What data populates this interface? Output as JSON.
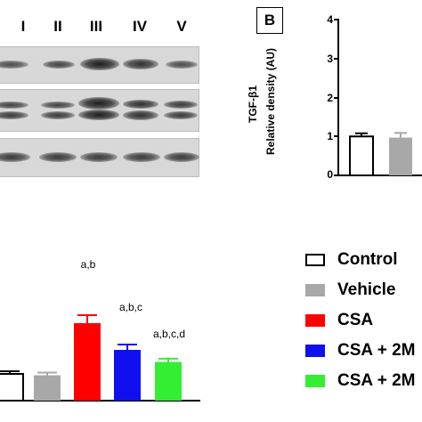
{
  "lanes": [
    "I",
    "II",
    "III",
    "IV",
    "V"
  ],
  "panel_b": {
    "label": "B",
    "ylabel_line1": "TGF-β1",
    "ylabel_line2": "Relative density (AU)",
    "yticks": [
      "0",
      "1",
      "2",
      "3",
      "4"
    ]
  },
  "chart_data": [
    {
      "type": "bar",
      "panel": "B",
      "categories": [
        "Control",
        "Vehicle"
      ],
      "values": [
        1.0,
        0.97
      ],
      "errors": [
        0.08,
        0.12
      ],
      "ylabel": "TGF-β1 Relative density (AU)",
      "ylim": [
        0,
        4
      ],
      "colors": [
        "#ffffff",
        "#a8a8a8"
      ]
    },
    {
      "type": "bar",
      "panel": "lower",
      "categories": [
        "Control",
        "Vehicle",
        "CSA",
        "CSA + 2M",
        "CSA + 2M"
      ],
      "values": [
        1.0,
        0.95,
        2.9,
        1.9,
        1.45
      ],
      "errors": [
        0.1,
        0.1,
        0.3,
        0.2,
        0.12
      ],
      "annotations": [
        "",
        "",
        "a,b",
        "a,b,c",
        "a,b,c,d"
      ],
      "ylim": [
        0,
        4.2
      ],
      "colors": [
        "#ffffff",
        "#a8a8a8",
        "#ff0000",
        "#1010ee",
        "#33ee33"
      ]
    }
  ],
  "legend": [
    {
      "label": "Control",
      "color": "#ffffff",
      "border": "#000000"
    },
    {
      "label": "Vehicle",
      "color": "#a8a8a8",
      "border": "#a8a8a8"
    },
    {
      "label": "CSA",
      "color": "#ff0000",
      "border": "#ff0000"
    },
    {
      "label": "CSA + 2M",
      "color": "#1010ee",
      "border": "#1010ee"
    },
    {
      "label": "CSA + 2M",
      "color": "#33ee33",
      "border": "#33ee33"
    }
  ]
}
